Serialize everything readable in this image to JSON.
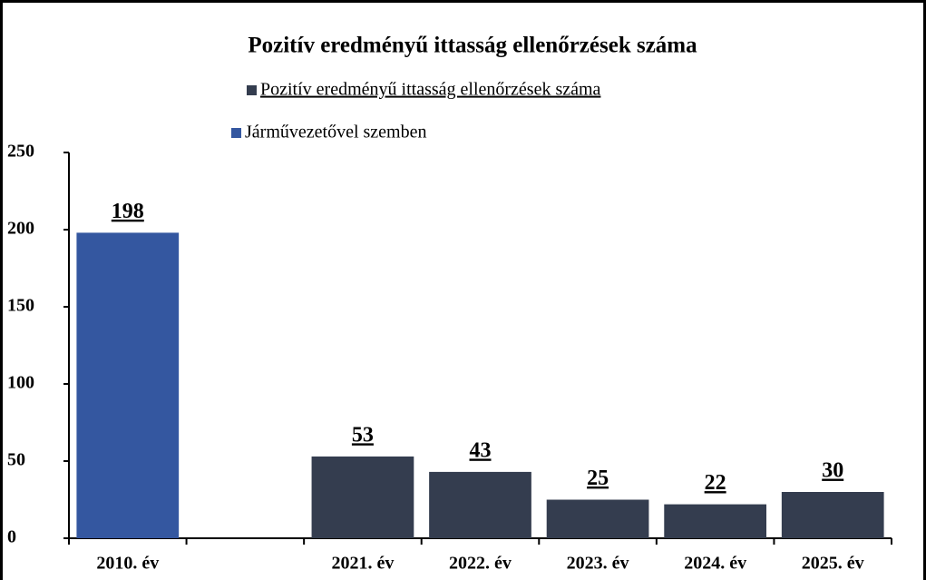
{
  "chart_data": {
    "type": "bar",
    "title": "Pozitív eredményű ittasság ellenőrzések száma",
    "categories": [
      "2010. év",
      null,
      "2021. év",
      "2022. év",
      "2023. év",
      "2024. év",
      "2025. év"
    ],
    "series": [
      {
        "name": "Pozitív eredményű ittasság ellenőrzések száma",
        "color": "#343d4f",
        "values": [
          null,
          null,
          53,
          43,
          25,
          22,
          30
        ]
      },
      {
        "name": "Járművezetővel szemben",
        "color": "#3457a0",
        "values": [
          198,
          null,
          null,
          null,
          null,
          null,
          null
        ]
      }
    ],
    "ylim": [
      0,
      250
    ],
    "yticks": [
      0,
      50,
      100,
      150,
      200,
      250
    ],
    "grid": false
  }
}
